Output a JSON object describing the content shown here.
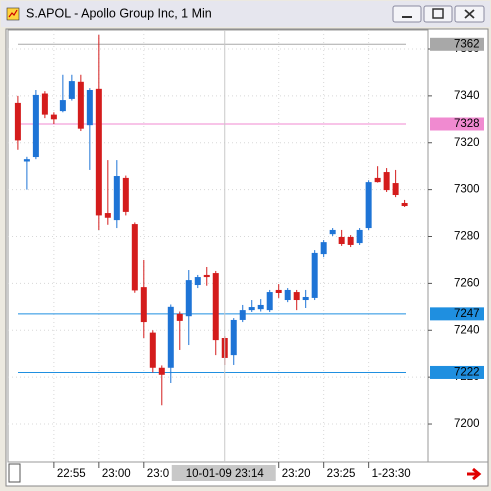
{
  "window_title": "S.APOL - Apollo Group Inc, 1 Min",
  "chart_data": {
    "type": "candlestick",
    "open": [
      7337,
      7312,
      7313.9,
      7341,
      7332,
      7333.5,
      7338.7,
      7346,
      7327.5,
      7343,
      7290,
      7287,
      7305,
      7285.3,
      7258.4,
      7239,
      7224,
      7224,
      7247,
      7246,
      7259.3,
      7263.6,
      7264.4,
      7236.7,
      7229.4,
      7244.4,
      7248.6,
      7249,
      7248.6,
      7257.2,
      7252.9,
      7256.3,
      7252.9,
      7253.8,
      7272.5,
      7281,
      7279.8,
      7279.8,
      7277.2,
      7283.6,
      7305,
      7307.5,
      7302.8,
      7294.3
    ],
    "high": [
      7340,
      7314,
      7342.5,
      7342,
      7333,
      7349,
      7349,
      7349,
      7343.3,
      7366,
      7312.6,
      7312.6,
      7306,
      7286,
      7270,
      7240,
      7225,
      7251,
      7248,
      7265.7,
      7263.6,
      7267,
      7265.3,
      7237.5,
      7245.2,
      7250.8,
      7252.9,
      7253.3,
      7257.2,
      7259.7,
      7258,
      7257.2,
      7257.2,
      7274.2,
      7278.5,
      7283.6,
      7282.8,
      7280.6,
      7283.6,
      7304,
      7310,
      7309.2,
      7308.4,
      7295.6
    ],
    "low": [
      7317,
      7300,
      7313,
      7330.5,
      7328,
      7333,
      7338,
      7325,
      7308.4,
      7282.8,
      7285,
      7283.6,
      7289,
      7256,
      7236.7,
      7222,
      7208,
      7217.5,
      7231.6,
      7233.7,
      7258,
      7259,
      7229.4,
      7225.2,
      7225.2,
      7243.5,
      7247.8,
      7248,
      7247.8,
      7253.8,
      7252,
      7248.6,
      7249.5,
      7252.9,
      7271.2,
      7280.2,
      7276,
      7275.5,
      7276.4,
      7282.8,
      7303,
      7299,
      7296.8,
      7292.6
    ],
    "close": [
      7321,
      7313,
      7340.4,
      7332,
      7330,
      7338.2,
      7346.3,
      7326,
      7342.5,
      7289,
      7288,
      7305.8,
      7290.5,
      7257,
      7243.5,
      7224,
      7221,
      7250,
      7244,
      7261.4,
      7262.7,
      7262.7,
      7235.8,
      7228.2,
      7244.4,
      7248.6,
      7249.9,
      7250.8,
      7256.3,
      7255.9,
      7257.2,
      7252.9,
      7254.2,
      7273,
      7277.6,
      7282.8,
      7276.8,
      7276.4,
      7282.8,
      7303.2,
      7303.2,
      7299.8,
      7297.7,
      7293
    ],
    "up_color": "#1e74d6",
    "down_color": "#d41c1c",
    "xlim": [
      -1.1,
      45.6
    ],
    "xticks": [
      {
        "value": 4,
        "label": "22:55"
      },
      {
        "value": 9,
        "label": "23:00"
      },
      {
        "value": 14,
        "label": "23:0"
      },
      {
        "value": 29,
        "label": "23:20"
      },
      {
        "value": 34,
        "label": "23:25"
      },
      {
        "value": 39,
        "label": "1-23:30"
      }
    ],
    "ylim": [
      7183.8,
      7368.1
    ],
    "yticks": [
      7200,
      7220,
      7240,
      7260,
      7280,
      7300,
      7320,
      7340,
      7360
    ],
    "grid": true,
    "crosshair": {
      "x": 23,
      "label": "10-01-09 23:14"
    },
    "price_lines": [
      {
        "value": 7362,
        "color": "#a8a8a8"
      },
      {
        "value": 7328,
        "color": "#f08ad0"
      },
      {
        "value": 7247,
        "color": "#1f8fe0"
      },
      {
        "value": 7222,
        "color": "#1f8fe0"
      }
    ]
  }
}
